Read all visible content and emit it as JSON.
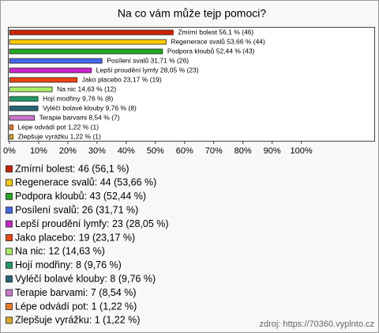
{
  "chart_data": {
    "type": "barh",
    "title": "Na co vám může tejp pomoci?",
    "categories": [
      "Zmírní bolest",
      "Regenerace svalů",
      "Podpora kloubů",
      "Posílení svalů",
      "Lepší proudění lymfy",
      "Jako placebo",
      "Na nic",
      "Hojí modřiny",
      "Vyléčí bolavé klouby",
      "Terapie barvami",
      "Lépe odvádí pot",
      "Zlepšuje vyrážku"
    ],
    "values": [
      56.1,
      53.66,
      52.44,
      31.71,
      28.05,
      23.17,
      14.63,
      9.76,
      9.76,
      8.54,
      1.22,
      1.22
    ],
    "value_labels": [
      "Zmírní bolest 56,1 % (46)",
      "Regenerace svalů 53,66 % (44)",
      "Podpora kloubů 52,44 % (43)",
      "Posílení svalů 31,71 % (26)",
      "Lepší proudění lymfy 28,05 % (23)",
      "Jako placebo 23,17 % (19)",
      "Na nic 14,63 % (12)",
      "Hojí modřiny 9,76 % (8)",
      "Vyléčí bolavé klouby 9,76 % (8)",
      "Terapie barvami 8,54 % (7)",
      "Lépe odvádí pot 1,22 % (1)",
      "Zlepšuje vyrážku 1,22 % (1)"
    ],
    "legend_labels": [
      "Zmírní bolest: 46 (56,1 %)",
      "Regenerace svalů: 44 (53,66 %)",
      "Podpora kloubů: 43 (52,44 %)",
      "Posílení svalů: 26 (31,71 %)",
      "Lepší proudění lymfy: 23 (28,05 %)",
      "Jako placebo: 19 (23,17 %)",
      "Na nic: 12 (14,63 %)",
      "Hojí modřiny: 8 (9,76 %)",
      "Vyléčí bolavé klouby: 8 (9,76 %)",
      "Terapie barvami: 7 (8,54 %)",
      "Lépe odvádí pot: 1 (1,22 %)",
      "Zlepšuje vyrážku: 1 (1,22 %)"
    ],
    "colors": [
      "#cc2200",
      "#ffcc00",
      "#22aa22",
      "#4466ee",
      "#cc22cc",
      "#ee4411",
      "#aaee66",
      "#229966",
      "#226677",
      "#cc77cc",
      "#ee7722",
      "#ddaa22"
    ],
    "xlim": [
      0,
      125
    ],
    "xticks": [
      {
        "value": 0,
        "label": "0%"
      },
      {
        "value": 10,
        "label": "10%"
      },
      {
        "value": 20,
        "label": "20%"
      },
      {
        "value": 30,
        "label": "30%"
      },
      {
        "value": 40,
        "label": "40%"
      },
      {
        "value": 50,
        "label": "50%"
      },
      {
        "value": 60,
        "label": "60%"
      },
      {
        "value": 70,
        "label": "70%"
      },
      {
        "value": 80,
        "label": "80%"
      },
      {
        "value": 90,
        "label": "90%"
      },
      {
        "value": 100,
        "label": "100%"
      }
    ],
    "source": "zdroj: https://70360.vyplnto.cz"
  }
}
